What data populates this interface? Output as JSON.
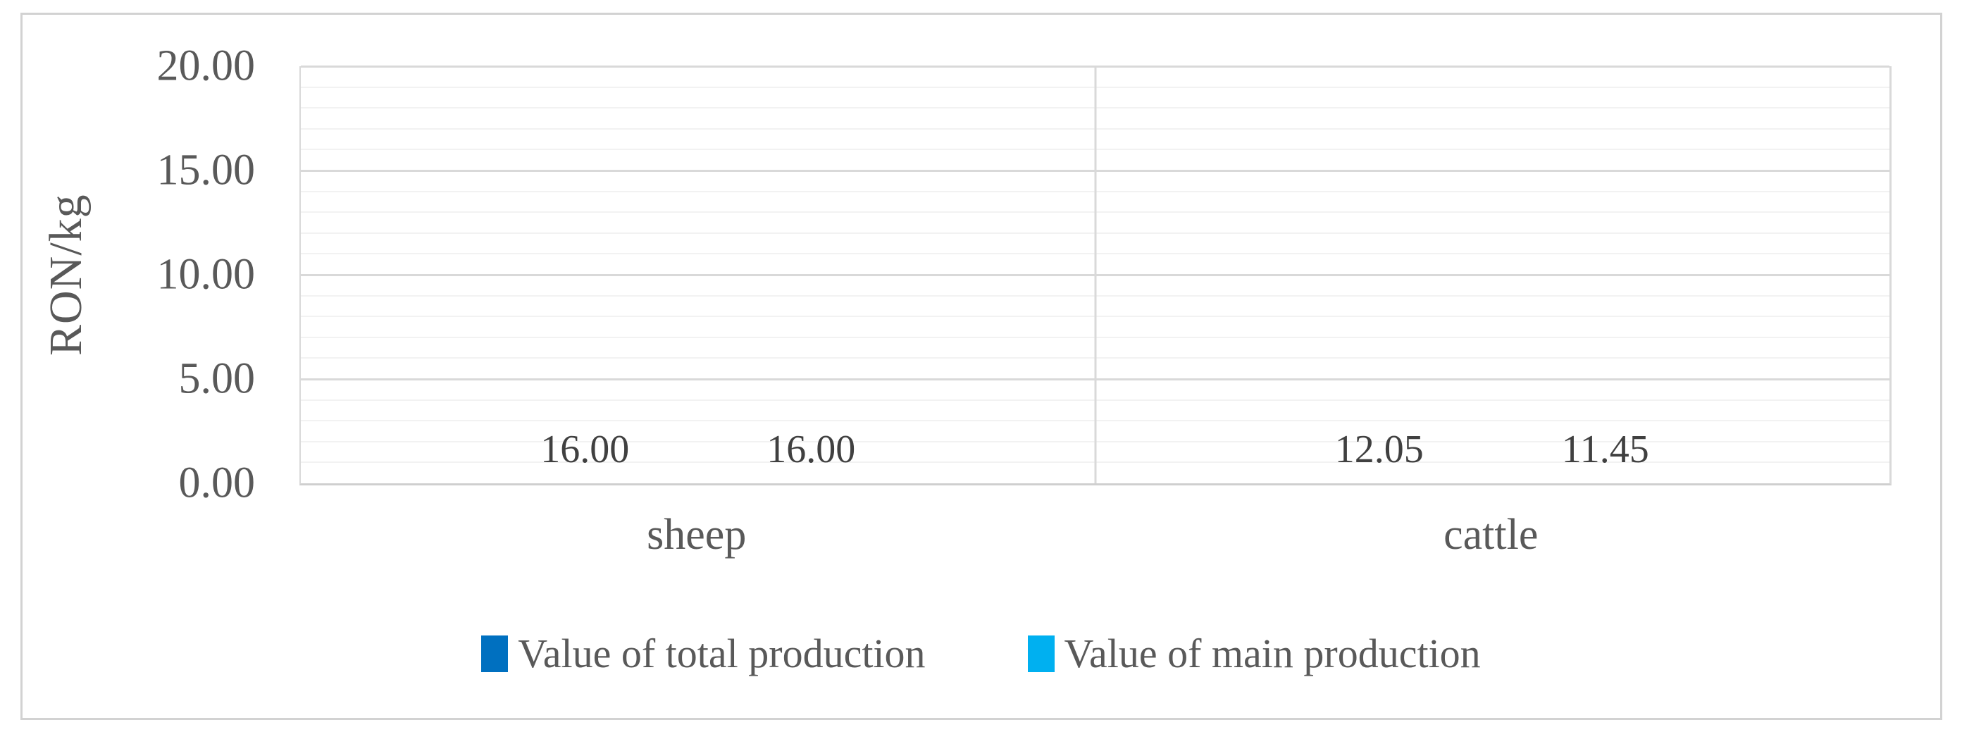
{
  "chart_data": {
    "type": "bar",
    "title": "",
    "ylabel": "RON/kg",
    "xlabel": "",
    "categories": [
      "sheep",
      "cattle"
    ],
    "series": [
      {
        "name": "Value of total production",
        "color": "#0070C0",
        "values": [
          16.0,
          12.05
        ],
        "value_labels": [
          "16.00",
          "12.05"
        ]
      },
      {
        "name": "Value of main production",
        "color": "#00B0F0",
        "values": [
          16.0,
          11.45
        ],
        "value_labels": [
          "16.00",
          "11.45"
        ]
      }
    ],
    "ylim": [
      0,
      20
    ],
    "yticks": [
      {
        "value": 0,
        "label": "0.00"
      },
      {
        "value": 5,
        "label": "5.00"
      },
      {
        "value": 10,
        "label": "10.00"
      },
      {
        "value": 15,
        "label": "15.00"
      },
      {
        "value": 20,
        "label": "20.00"
      }
    ],
    "y_major_step": 5,
    "y_minor_step": 1,
    "grid": "horizontal major and minor",
    "legend_position": "bottom"
  },
  "style": {
    "axis_text_color": "#595959",
    "data_label_color": "#404040",
    "major_gridline_color": "#d9d9d9",
    "minor_gridline_color": "#f2f2f2",
    "axis_line_color": "#cfcfcf",
    "frame_border_color": "#d2d2d2"
  }
}
